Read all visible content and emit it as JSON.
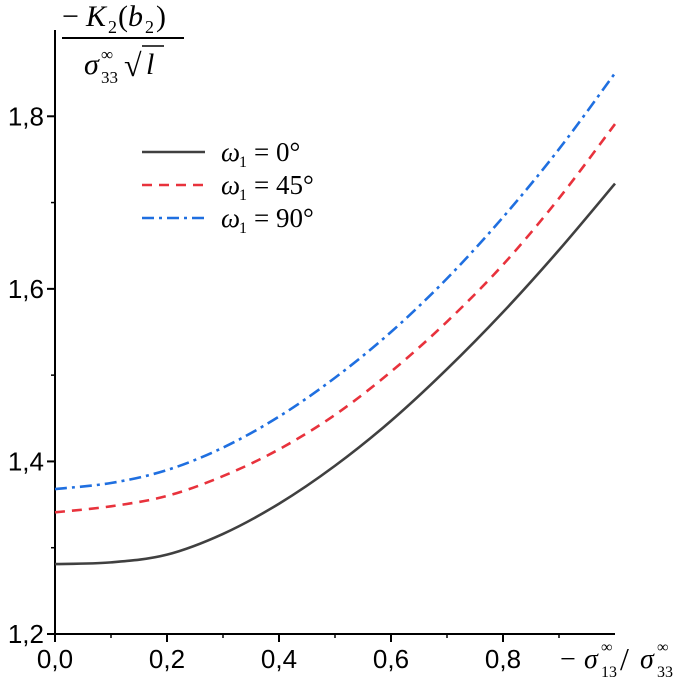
{
  "chart_data": {
    "type": "line",
    "title": "",
    "ylabel": {
      "numerator": "− K₂(b₂)",
      "denominator": "σ₃₃∞ √l"
    },
    "xlabel": "− σ₁₃∞ / σ₃₃∞",
    "xlim": [
      0.0,
      1.0
    ],
    "ylim": [
      1.2,
      1.9
    ],
    "x_ticks": [
      "0,0",
      "0,2",
      "0,4",
      "0,6",
      "0,8"
    ],
    "y_ticks": [
      "1,2",
      "1,4",
      "1,6",
      "1,8"
    ],
    "grid": false,
    "legend_position": "top-left",
    "x": [
      0.0,
      0.1,
      0.2,
      0.3,
      0.4,
      0.5,
      0.6,
      0.7,
      0.8,
      0.9,
      1.0
    ],
    "series": [
      {
        "name": "ω₁ = 0°",
        "legend_symbol": "ω",
        "legend_sub": "1",
        "legend_rest": "= 0°",
        "color": "#404040",
        "dash": "solid",
        "values": [
          1.281,
          1.283,
          1.292,
          1.316,
          1.351,
          1.395,
          1.447,
          1.507,
          1.573,
          1.645,
          1.722
        ]
      },
      {
        "name": "ω₁ = 45°",
        "legend_symbol": "ω",
        "legend_sub": "1",
        "legend_rest": "= 45°",
        "color": "#e8323c",
        "dash": "dashed",
        "values": [
          1.341,
          1.348,
          1.36,
          1.383,
          1.414,
          1.454,
          1.504,
          1.562,
          1.628,
          1.705,
          1.791
        ]
      },
      {
        "name": "ω₁ = 90°",
        "legend_symbol": "ω",
        "legend_sub": "1",
        "legend_rest": "= 90°",
        "color": "#1f6fe0",
        "dash": "dashdot",
        "values": [
          1.368,
          1.375,
          1.39,
          1.416,
          1.452,
          1.497,
          1.55,
          1.612,
          1.683,
          1.762,
          1.85
        ]
      }
    ]
  }
}
